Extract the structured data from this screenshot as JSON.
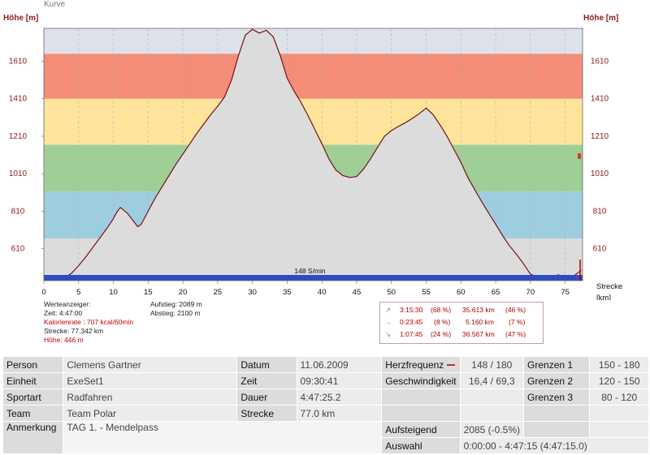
{
  "header": {
    "title": "Kurve",
    "y_unit_left": "Höhe [m]",
    "y_unit_right": "Höhe [m]"
  },
  "chart_data": {
    "type": "area",
    "xlabel": "Strecke [km]",
    "ylabel": "Höhe [m]",
    "xlim": [
      0,
      77.5
    ],
    "ylim": [
      440,
      1785
    ],
    "xticks": [
      0,
      5,
      10,
      15,
      20,
      25,
      30,
      35,
      40,
      45,
      50,
      55,
      60,
      65,
      70,
      75
    ],
    "yticks": [
      610,
      810,
      1010,
      1210,
      1410,
      1610
    ],
    "zones": [
      {
        "from": 440,
        "to": 665,
        "color": "#dcdcdc"
      },
      {
        "from": 665,
        "to": 915,
        "color": "#9fcde0"
      },
      {
        "from": 915,
        "to": 1165,
        "color": "#9fcf97"
      },
      {
        "from": 1165,
        "to": 1410,
        "color": "#fde49a"
      },
      {
        "from": 1410,
        "to": 1650,
        "color": "#f48c77"
      },
      {
        "from": 1650,
        "to": 1785,
        "color": "#dde2ea"
      }
    ],
    "series": [
      {
        "x": [
          0,
          1,
          2,
          3,
          4,
          5,
          6,
          7,
          8,
          9,
          10,
          10.5,
          11,
          12,
          13,
          13.5,
          14,
          15,
          16,
          17,
          18,
          19,
          20,
          21,
          22,
          23,
          24,
          25,
          26,
          27,
          28,
          29,
          30,
          31,
          32,
          33,
          34,
          35,
          36,
          37,
          38,
          39,
          40,
          41,
          42,
          43,
          44,
          45,
          46,
          47,
          48,
          49,
          50,
          51,
          52,
          53,
          54,
          55,
          56,
          57,
          58,
          59,
          60,
          61,
          62,
          63,
          64,
          65,
          66,
          67,
          68,
          69,
          70,
          71,
          72,
          73,
          74,
          75,
          76,
          77.3
        ],
        "y": [
          455,
          448,
          446,
          455,
          480,
          520,
          565,
          615,
          665,
          715,
          770,
          805,
          830,
          800,
          752,
          728,
          740,
          810,
          880,
          940,
          1000,
          1060,
          1115,
          1170,
          1225,
          1275,
          1325,
          1370,
          1420,
          1510,
          1640,
          1750,
          1780,
          1760,
          1775,
          1740,
          1640,
          1520,
          1450,
          1390,
          1320,
          1245,
          1170,
          1090,
          1030,
          1000,
          990,
          995,
          1035,
          1090,
          1150,
          1210,
          1240,
          1262,
          1282,
          1305,
          1330,
          1360,
          1325,
          1270,
          1210,
          1140,
          1070,
          990,
          925,
          860,
          800,
          740,
          680,
          625,
          580,
          530,
          475,
          458,
          449,
          451,
          471,
          455,
          458,
          495
        ]
      }
    ],
    "speed_label": "148 S/min"
  },
  "info_left": {
    "werteanzeiger": "Werteanzeiger:",
    "zeit": "Zeit: 4:47:00",
    "kalorienrate": "Kalorienrate : 707 kcal/60min",
    "strecke": "Strecke: 77.342 km",
    "hoehe": "Höhe: 446 m"
  },
  "info_mid": {
    "aufstieg": "Aufstieg: 2089 m",
    "abstieg": "Abstieg: 2100 m"
  },
  "stats": [
    {
      "icon": "↗",
      "time": "3:15:30",
      "time_pct": "(68 %)",
      "dist": "35.613 km",
      "dist_pct": "(46 %)"
    },
    {
      "icon": "→",
      "time": "0:23:45",
      "time_pct": "(8 %)",
      "dist": "5.160 km",
      "dist_pct": "(7 %)"
    },
    {
      "icon": "↘",
      "time": "1:07:45",
      "time_pct": "(24 %)",
      "dist": "36.567 km",
      "dist_pct": "(47 %)"
    }
  ],
  "table": {
    "person_label": "Person",
    "person": "Clemens Gartner",
    "einheit_label": "Einheit",
    "einheit": "ExeSet1",
    "sportart_label": "Sportart",
    "sportart": "Radfahren",
    "team_label": "Team",
    "team": "Team Polar",
    "anmerkung_label": "Anmerkung",
    "anmerkung": "TAG 1. - Mendelpass",
    "datum_label": "Datum",
    "datum": "11.06.2009",
    "zeit_label": "Zeit",
    "zeit": "09:30:41",
    "dauer_label": "Dauer",
    "dauer": "4:47:25.2",
    "strecke_label": "Strecke",
    "strecke": "77.0 km",
    "hf_label": "Herzfrequenz",
    "hf": "148 / 180",
    "geschw_label": "Geschwindigkeit",
    "geschw": "16,4 / 69,3",
    "aufsteigend_label": "Aufsteigend",
    "aufsteigend": "2085 (-0.5%)",
    "auswahl_label": "Auswahl",
    "auswahl": "0:00:00 - 4:47:15 (4:47:15.0)",
    "grenzen1_label": "Grenzen 1",
    "grenzen1": "150 - 180",
    "grenzen2_label": "Grenzen 2",
    "grenzen2": "120 - 150",
    "grenzen3_label": "Grenzen 3",
    "grenzen3": "80 - 120"
  }
}
